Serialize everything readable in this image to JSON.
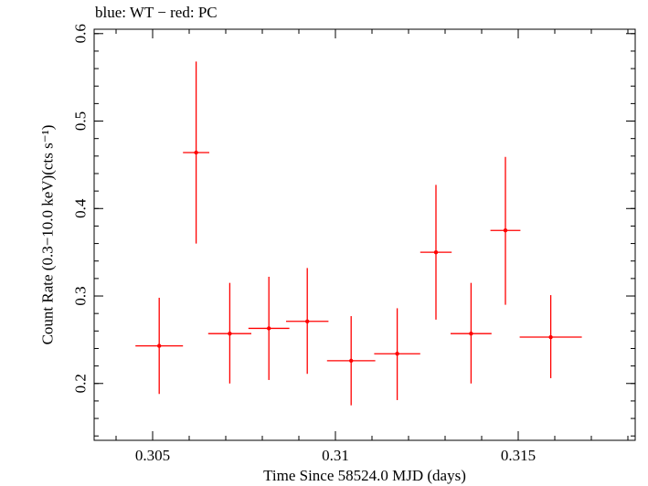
{
  "chart_data": {
    "type": "scatter",
    "title": "blue: WT − red: PC",
    "xlabel": "Time Since 58524.0 MJD (days)",
    "ylabel": "Count Rate (0.3−10.0 keV)(cts s⁻¹)",
    "xlim": [
      0.3034,
      0.3182
    ],
    "ylim": [
      0.135,
      0.605
    ],
    "x_ticks": [
      {
        "value": 0.305,
        "label": "0.305"
      },
      {
        "value": 0.31,
        "label": "0.31"
      },
      {
        "value": 0.315,
        "label": "0.315"
      }
    ],
    "y_ticks": [
      {
        "value": 0.2,
        "label": "0.2"
      },
      {
        "value": 0.3,
        "label": "0.3"
      },
      {
        "value": 0.4,
        "label": "0.4"
      },
      {
        "value": 0.5,
        "label": "0.5"
      },
      {
        "value": 0.6,
        "label": "0.6"
      }
    ],
    "grid": false,
    "color": "#ff0000",
    "series": [
      {
        "points": [
          {
            "x": 0.30518,
            "xerr": 0.00065,
            "y": 0.243,
            "ylo": 0.188,
            "yhi": 0.298
          },
          {
            "x": 0.30619,
            "xerr": 0.00036,
            "y": 0.464,
            "ylo": 0.36,
            "yhi": 0.568
          },
          {
            "x": 0.30711,
            "xerr": 0.00059,
            "y": 0.257,
            "ylo": 0.2,
            "yhi": 0.315
          },
          {
            "x": 0.30818,
            "xerr": 0.00056,
            "y": 0.263,
            "ylo": 0.204,
            "yhi": 0.322
          },
          {
            "x": 0.30923,
            "xerr": 0.00058,
            "y": 0.271,
            "ylo": 0.211,
            "yhi": 0.332
          },
          {
            "x": 0.31043,
            "xerr": 0.00066,
            "y": 0.226,
            "ylo": 0.175,
            "yhi": 0.277
          },
          {
            "x": 0.31169,
            "xerr": 0.00063,
            "y": 0.234,
            "ylo": 0.181,
            "yhi": 0.286
          },
          {
            "x": 0.31275,
            "xerr": 0.00043,
            "y": 0.35,
            "ylo": 0.273,
            "yhi": 0.427
          },
          {
            "x": 0.31371,
            "xerr": 0.00056,
            "y": 0.257,
            "ylo": 0.2,
            "yhi": 0.315
          },
          {
            "x": 0.31465,
            "xerr": 0.00041,
            "y": 0.375,
            "ylo": 0.29,
            "yhi": 0.459
          },
          {
            "x": 0.31589,
            "xerr": 0.00085,
            "y": 0.253,
            "ylo": 0.206,
            "yhi": 0.301
          }
        ]
      }
    ]
  }
}
